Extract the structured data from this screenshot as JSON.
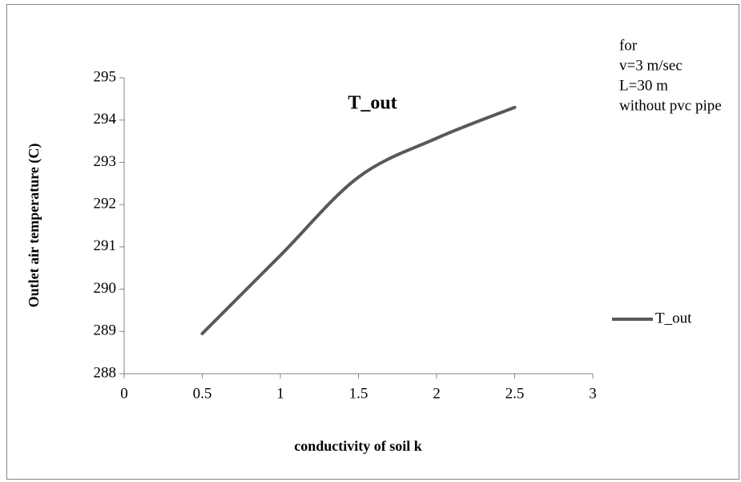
{
  "chart_data": {
    "type": "line",
    "title": "T_out",
    "xlabel": "conductivity of soil k",
    "ylabel": "Outlet air temperature (C)",
    "annotation": [
      "for",
      "v=3 m/sec",
      "L=30 m",
      "without pvc pipe"
    ],
    "x": [
      0.5,
      1,
      1.5,
      2,
      2.5
    ],
    "series": [
      {
        "name": "T_out",
        "color": "#595959",
        "values": [
          288.95,
          290.8,
          292.65,
          293.57,
          294.3
        ]
      }
    ],
    "xlim": [
      0,
      3
    ],
    "xticks": [
      0,
      0.5,
      1,
      1.5,
      2,
      2.5,
      3
    ],
    "ylim": [
      288,
      295
    ],
    "yticks": [
      288,
      289,
      290,
      291,
      292,
      293,
      294,
      295
    ],
    "grid": false,
    "legend": "right"
  }
}
